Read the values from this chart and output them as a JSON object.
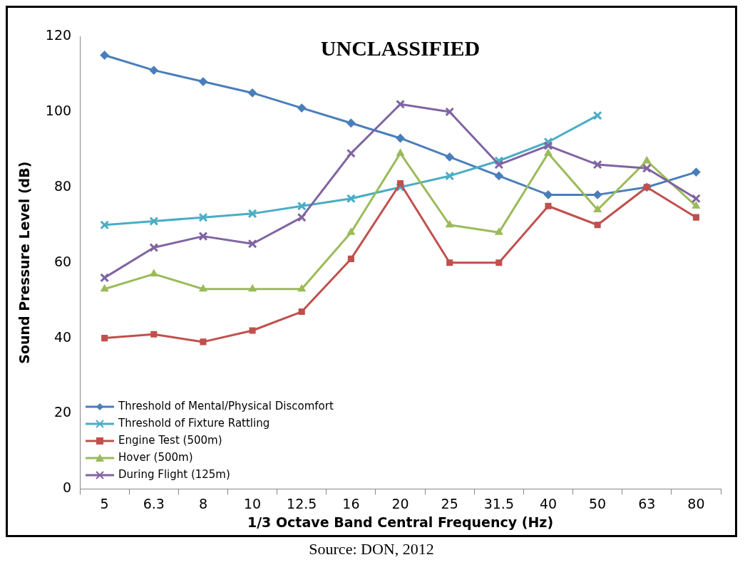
{
  "chart_data": {
    "type": "line",
    "title": "UNCLASSIFIED",
    "xlabel": "1/3 Octave Band Central Frequency (Hz)",
    "ylabel": "Sound Pressure Level (dB)",
    "categories": [
      "5",
      "6.3",
      "8",
      "10",
      "12.5",
      "16",
      "20",
      "25",
      "31.5",
      "40",
      "50",
      "63",
      "80"
    ],
    "ylim": [
      0,
      120
    ],
    "yticks": [
      0,
      20,
      40,
      60,
      80,
      100,
      120
    ],
    "grid": false,
    "legend": "bottom left",
    "series": [
      {
        "name": "Threshold of Mental/Physical Discomfort",
        "color": "#4a7ebb",
        "marker": "diamond",
        "values": [
          115,
          111,
          108,
          105,
          101,
          97,
          93,
          88,
          83,
          78,
          78,
          80,
          84
        ]
      },
      {
        "name": "Threshold of Fixture Rattling",
        "color": "#4bacc6",
        "marker": "cross",
        "values": [
          70,
          71,
          72,
          73,
          75,
          77,
          80,
          83,
          87,
          92,
          99,
          null,
          null
        ]
      },
      {
        "name": "Engine Test (500m)",
        "color": "#c0504d",
        "marker": "square",
        "values": [
          40,
          41,
          39,
          42,
          47,
          61,
          81,
          60,
          60,
          75,
          70,
          80,
          72
        ]
      },
      {
        "name": "Hover (500m)",
        "color": "#9bbb59",
        "marker": "triangle",
        "values": [
          53,
          57,
          53,
          53,
          53,
          68,
          89,
          70,
          68,
          89,
          74,
          87,
          75
        ]
      },
      {
        "name": "During Flight (125m)",
        "color": "#8064a2",
        "marker": "cross",
        "values": [
          56,
          64,
          67,
          65,
          72,
          89,
          102,
          100,
          86,
          91,
          86,
          85,
          77
        ]
      }
    ],
    "annotations": [
      "Source: DON, 2012"
    ]
  }
}
